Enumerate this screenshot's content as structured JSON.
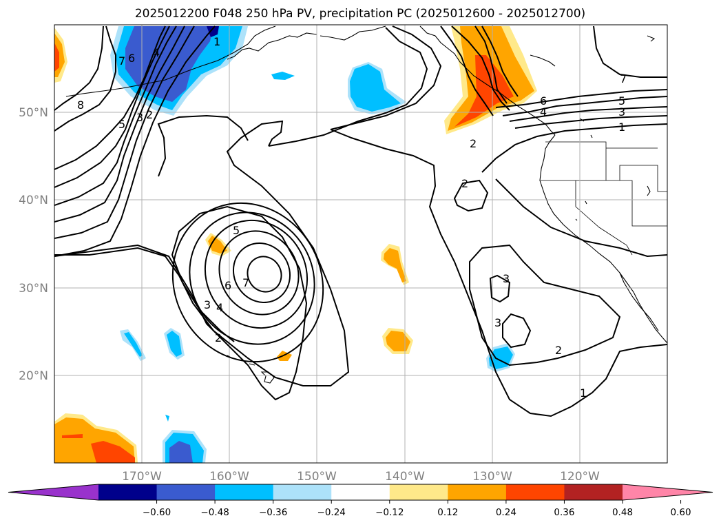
{
  "title": "2025012200 F048 250 hPa PV, precipitation PC (2025012600 - 2025012700)",
  "map": {
    "projection": "PlateCarree",
    "lon_range": [
      -180,
      -110
    ],
    "lat_range": [
      10,
      60
    ],
    "lat_ticks": [
      {
        "value": 20,
        "label": "20°N"
      },
      {
        "value": 30,
        "label": "30°N"
      },
      {
        "value": 40,
        "label": "40°N"
      },
      {
        "value": 50,
        "label": "50°N"
      }
    ],
    "lon_ticks": [
      {
        "value": -170,
        "label": "170°W"
      },
      {
        "value": -160,
        "label": "160°W"
      },
      {
        "value": -150,
        "label": "150°W"
      },
      {
        "value": -140,
        "label": "140°W"
      },
      {
        "value": -130,
        "label": "130°W"
      },
      {
        "value": -120,
        "label": "120°W"
      }
    ],
    "gridlines": true,
    "pv_contour_labels": [
      "8",
      "7",
      "6",
      "5",
      "4",
      "3",
      "2",
      "1",
      "2",
      "2",
      "5",
      "6",
      "7",
      "6",
      "5",
      "4",
      "3",
      "2",
      "3",
      "3",
      "2",
      "1",
      "7",
      "6",
      "5",
      "4",
      "3",
      "1",
      "2",
      "1"
    ]
  },
  "colorbar": {
    "ticks": [
      "−0.60",
      "−0.48",
      "−0.36",
      "−0.24",
      "−0.12",
      "0.12",
      "0.24",
      "0.36",
      "0.48",
      "0.60"
    ],
    "colors": [
      "#9932CC",
      "#00008B",
      "#3A5BCF",
      "#00BFFF",
      "#ADE2FA",
      "#FFFFFF",
      "#FFE98A",
      "#FFA500",
      "#FF4500",
      "#B22222",
      "#FF85A8"
    ],
    "extend": "both"
  },
  "colors": {
    "neg_weak": "#ADE2FA",
    "neg_mid": "#00BFFF",
    "neg_strong": "#3A5BCF",
    "neg_max": "#00008B",
    "pos_weak": "#FFE98A",
    "pos_mid": "#FFA500",
    "pos_strong": "#FF4500",
    "grid": "#b0b0b0",
    "contour": "#000000",
    "axis_label": "#808080"
  }
}
